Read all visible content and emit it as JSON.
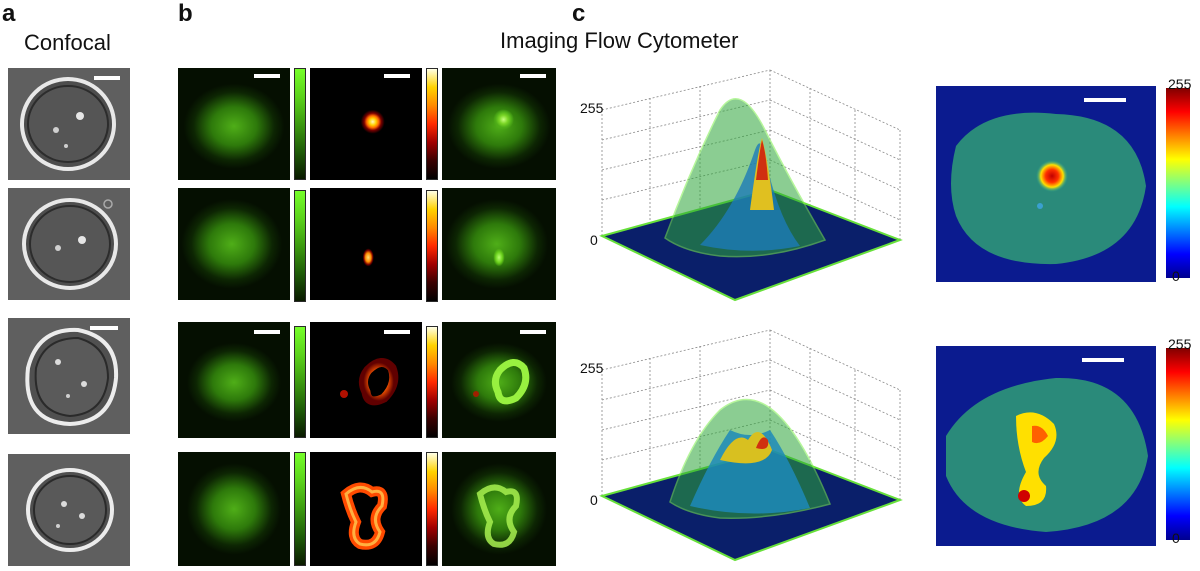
{
  "panels": {
    "a": "a",
    "b": "b",
    "c": "c"
  },
  "titles": {
    "confocal": "Confocal",
    "imaging_flow": "Imaging Flow Cytometer"
  },
  "surface_plots": [
    {
      "z_top_label": "255",
      "z_bottom_label": "0"
    },
    {
      "z_top_label": "255",
      "z_bottom_label": "0"
    }
  ],
  "heatmaps": [
    {
      "cb_top": "255",
      "cb_bottom": "0"
    },
    {
      "cb_top": "255",
      "cb_bottom": "0"
    }
  ],
  "colors": {
    "green": "#5cd21c",
    "hot_yellow": "#ffd200",
    "jet_red": "#ff0000",
    "jet_blue": "#0000ff"
  }
}
